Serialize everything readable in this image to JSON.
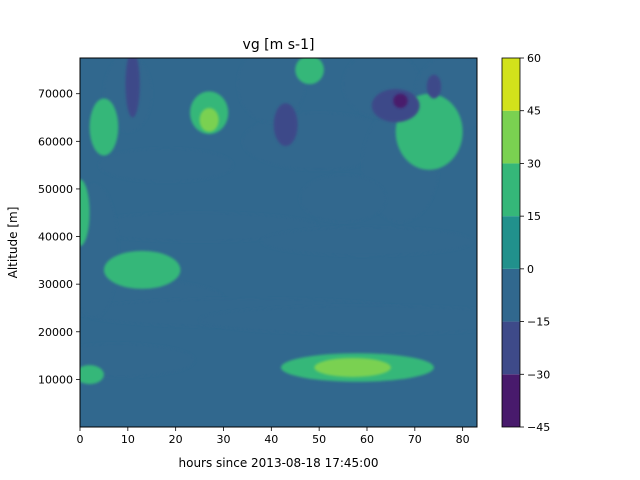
{
  "chart_data": {
    "type": "heatmap",
    "subtype": "filled-contour",
    "title": "vg [m s-1]",
    "xlabel": "hours since 2013-08-18 17:45:00",
    "ylabel": "Altitude [m]",
    "xlim": [
      0,
      83
    ],
    "ylim": [
      0,
      77500
    ],
    "x_ticks": [
      0,
      10,
      20,
      30,
      40,
      50,
      60,
      70,
      80
    ],
    "y_ticks": [
      10000,
      20000,
      30000,
      40000,
      50000,
      60000,
      70000
    ],
    "grid": false,
    "colorbar": {
      "levels": [
        -45,
        -30,
        -15,
        0,
        15,
        30,
        45,
        60
      ],
      "colors": [
        "#481a6c",
        "#3e4a89",
        "#31688e",
        "#21918c",
        "#35b779",
        "#7ad151",
        "#d2e21b"
      ]
    },
    "regions": [
      {
        "band": [
          -15,
          0
        ],
        "center": [
          10,
          27000
        ],
        "extent": [
          20,
          4000
        ]
      },
      {
        "band": [
          -15,
          0
        ],
        "center": [
          35,
          24000
        ],
        "extent": [
          35,
          3000
        ]
      },
      {
        "band": [
          -15,
          0
        ],
        "center": [
          60,
          22500
        ],
        "extent": [
          35,
          3000
        ]
      },
      {
        "band": [
          -15,
          0
        ],
        "center": [
          8,
          14000
        ],
        "extent": [
          16,
          3500
        ]
      },
      {
        "band": [
          -15,
          0
        ],
        "center": [
          25,
          42000
        ],
        "extent": [
          25,
          3000
        ]
      },
      {
        "band": [
          -15,
          0
        ],
        "center": [
          60,
          39000
        ],
        "extent": [
          22,
          3000
        ]
      },
      {
        "band": [
          -15,
          0
        ],
        "center": [
          18,
          55000
        ],
        "extent": [
          14,
          3500
        ]
      },
      {
        "band": [
          -15,
          0
        ],
        "center": [
          50,
          60000
        ],
        "extent": [
          16,
          6000
        ]
      },
      {
        "band": [
          -15,
          0
        ],
        "center": [
          67,
          55000
        ],
        "extent": [
          8,
          12000
        ]
      },
      {
        "band": [
          -15,
          0
        ],
        "center": [
          40,
          72000
        ],
        "extent": [
          7,
          8000
        ]
      },
      {
        "band": [
          -15,
          0
        ],
        "center": [
          63,
          72000
        ],
        "extent": [
          8,
          7000
        ]
      },
      {
        "band": [
          -15,
          0
        ],
        "center": [
          10,
          70000
        ],
        "extent": [
          5,
          8000
        ]
      },
      {
        "band": [
          -15,
          0
        ],
        "center": [
          78,
          70000
        ],
        "extent": [
          8,
          8000
        ]
      },
      {
        "band": [
          -15,
          0
        ],
        "center": [
          55,
          48000
        ],
        "extent": [
          9,
          5000
        ]
      },
      {
        "band": [
          -15,
          0
        ],
        "center": [
          3,
          37000
        ],
        "extent": [
          5,
          14000
        ]
      },
      {
        "band": [
          15,
          30
        ],
        "center": [
          13,
          33000
        ],
        "extent": [
          8,
          4000
        ]
      },
      {
        "band": [
          15,
          30
        ],
        "center": [
          0,
          45000
        ],
        "extent": [
          2,
          7000
        ]
      },
      {
        "band": [
          15,
          30
        ],
        "center": [
          73,
          62000
        ],
        "extent": [
          7,
          8000
        ]
      },
      {
        "band": [
          15,
          30
        ],
        "center": [
          27,
          66000
        ],
        "extent": [
          4,
          4500
        ]
      },
      {
        "band": [
          15,
          30
        ],
        "center": [
          5,
          63000
        ],
        "extent": [
          3,
          6000
        ]
      },
      {
        "band": [
          15,
          30
        ],
        "center": [
          58,
          12500
        ],
        "extent": [
          16,
          3000
        ]
      },
      {
        "band": [
          15,
          30
        ],
        "center": [
          2,
          11000
        ],
        "extent": [
          3,
          2000
        ]
      },
      {
        "band": [
          15,
          30
        ],
        "center": [
          48,
          75000
        ],
        "extent": [
          3,
          3000
        ]
      },
      {
        "band": [
          30,
          45
        ],
        "center": [
          57,
          12500
        ],
        "extent": [
          8,
          2000
        ]
      },
      {
        "band": [
          30,
          45
        ],
        "center": [
          27,
          64500
        ],
        "extent": [
          2,
          2500
        ]
      },
      {
        "band": [
          -30,
          -15
        ],
        "center": [
          43,
          63500
        ],
        "extent": [
          2.5,
          4500
        ]
      },
      {
        "band": [
          -30,
          -15
        ],
        "center": [
          66,
          67500
        ],
        "extent": [
          5,
          3500
        ]
      },
      {
        "band": [
          -30,
          -15
        ],
        "center": [
          11,
          72000
        ],
        "extent": [
          1.5,
          7000
        ]
      },
      {
        "band": [
          -30,
          -15
        ],
        "center": [
          74,
          71500
        ],
        "extent": [
          1.5,
          2500
        ]
      },
      {
        "band": [
          -45,
          -30
        ],
        "center": [
          67,
          68500
        ],
        "extent": [
          1.5,
          1500
        ]
      }
    ]
  }
}
